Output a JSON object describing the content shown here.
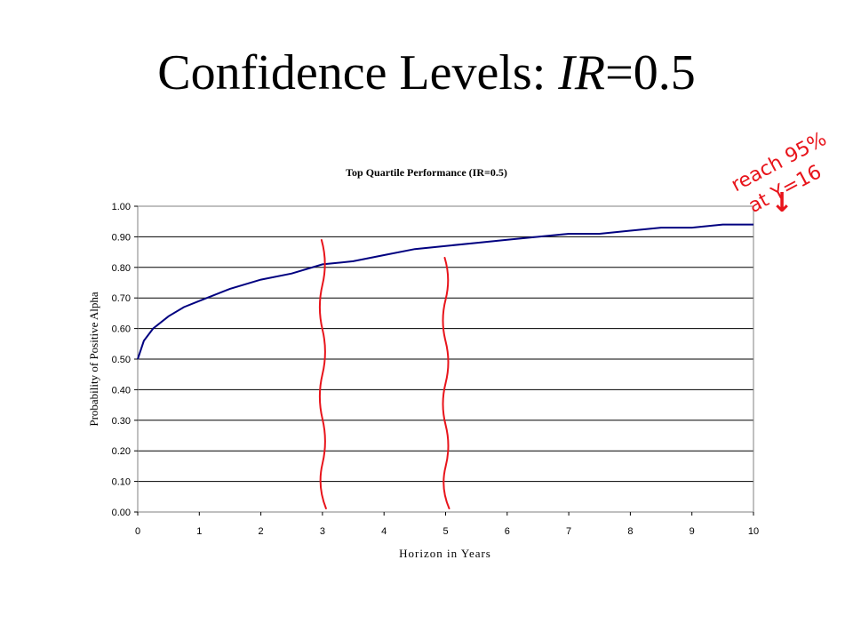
{
  "slide": {
    "title_prefix": "Confidence Levels:  ",
    "title_ir": "IR",
    "title_suffix": "=0.5"
  },
  "annotation": {
    "text_line1": "reach 95%",
    "text_line2": "at Y=16",
    "arrow": "↓",
    "color": "#e8141b"
  },
  "chart_data": {
    "type": "line",
    "title": "Top Quartile Performance (IR=0.5)",
    "xlabel": "Horizon in Years",
    "ylabel": "Probability of Positive Alpha",
    "xlim": [
      0,
      10
    ],
    "ylim": [
      0,
      1
    ],
    "x_ticks": [
      "0",
      "1",
      "2",
      "3",
      "4",
      "5",
      "6",
      "7",
      "8",
      "9",
      "10"
    ],
    "y_ticks": [
      "0.00",
      "0.10",
      "0.20",
      "0.30",
      "0.40",
      "0.50",
      "0.60",
      "0.70",
      "0.80",
      "0.90",
      "1.00"
    ],
    "grid": "horizontal",
    "line_color": "#000080",
    "series": [
      {
        "x": [
          0,
          0.1,
          0.25,
          0.5,
          0.75,
          1,
          1.5,
          2,
          2.5,
          3,
          3.5,
          4,
          4.5,
          5,
          5.5,
          6,
          6.5,
          7,
          7.5,
          8,
          8.5,
          9,
          9.5,
          10
        ],
        "values": [
          0.5,
          0.56,
          0.6,
          0.64,
          0.67,
          0.69,
          0.73,
          0.76,
          0.78,
          0.81,
          0.82,
          0.84,
          0.86,
          0.87,
          0.88,
          0.89,
          0.9,
          0.91,
          0.91,
          0.92,
          0.93,
          0.93,
          0.94,
          0.94
        ]
      }
    ],
    "markers_x": [
      3,
      5
    ],
    "marker_color": "#e8141b"
  }
}
